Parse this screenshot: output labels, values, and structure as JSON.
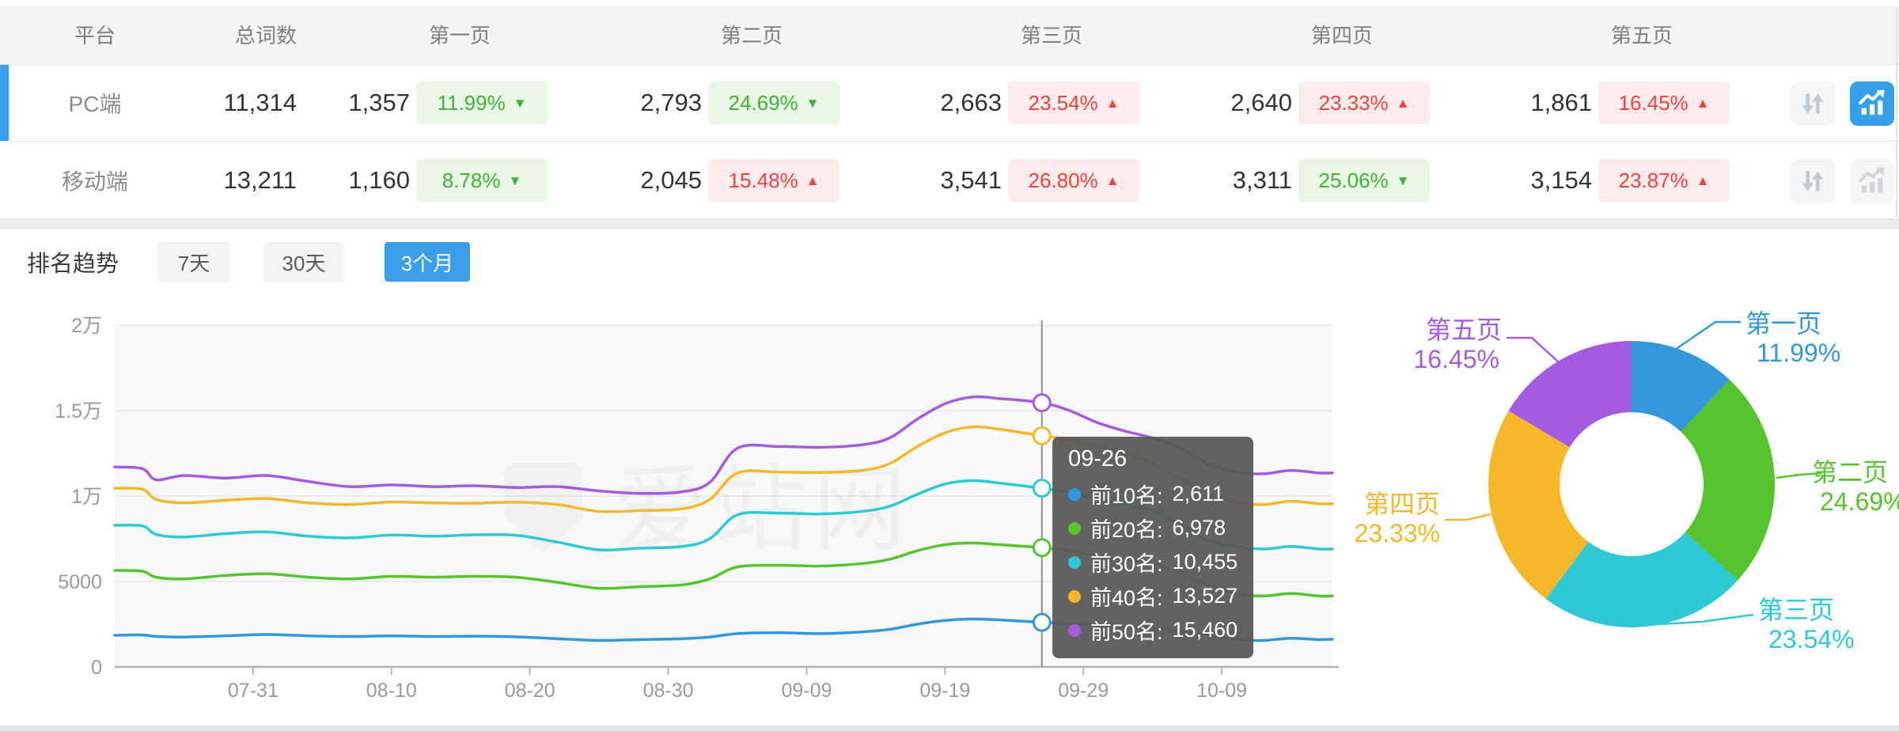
{
  "accent_color": "#3A9FE8",
  "table": {
    "columns": [
      "平台",
      "总词数",
      "第一页",
      "第二页",
      "第三页",
      "第四页",
      "第五页"
    ],
    "rows": [
      {
        "platform": "PC端",
        "total": "11,314",
        "selected": true,
        "chart_active": true,
        "pages": [
          {
            "count": "1,357",
            "pct": "11.99%",
            "dir": "down"
          },
          {
            "count": "2,793",
            "pct": "24.69%",
            "dir": "down"
          },
          {
            "count": "2,663",
            "pct": "23.54%",
            "dir": "up"
          },
          {
            "count": "2,640",
            "pct": "23.33%",
            "dir": "up"
          },
          {
            "count": "1,861",
            "pct": "16.45%",
            "dir": "up"
          }
        ]
      },
      {
        "platform": "移动端",
        "total": "13,211",
        "selected": false,
        "chart_active": false,
        "pages": [
          {
            "count": "1,160",
            "pct": "8.78%",
            "dir": "down"
          },
          {
            "count": "2,045",
            "pct": "15.48%",
            "dir": "up"
          },
          {
            "count": "3,541",
            "pct": "26.80%",
            "dir": "up"
          },
          {
            "count": "3,311",
            "pct": "25.06%",
            "dir": "down"
          },
          {
            "count": "3,154",
            "pct": "23.87%",
            "dir": "up"
          }
        ]
      }
    ],
    "icons": {
      "sort": "up-down-arrows",
      "trend_chart": "line-chart-with-bars"
    }
  },
  "trend": {
    "title": "排名趋势",
    "tabs": [
      {
        "label": "7天",
        "active": false
      },
      {
        "label": "30天",
        "active": false
      },
      {
        "label": "3个月",
        "active": true
      }
    ]
  },
  "watermark": "爱站网",
  "tooltip": {
    "date": "09-26",
    "rows": [
      {
        "label": "前10名:",
        "value": "2,611",
        "color": "#3398DB"
      },
      {
        "label": "前20名:",
        "value": "6,978",
        "color": "#55C42E"
      },
      {
        "label": "前30名:",
        "value": "10,455",
        "color": "#2FC9D6"
      },
      {
        "label": "前40名:",
        "value": "13,527",
        "color": "#F5B82B"
      },
      {
        "label": "前50名:",
        "value": "15,460",
        "color": "#A55BDF"
      }
    ]
  },
  "chart_data": [
    {
      "type": "line",
      "title": "排名趋势(3个月)",
      "x_start_date": "07-21",
      "x_end_date": "10-17",
      "total_days": 88,
      "x_tick_days": [
        10,
        20,
        30,
        40,
        50,
        60,
        70,
        80
      ],
      "x_tick_labels": [
        "07-31",
        "08-10",
        "08-20",
        "08-30",
        "09-09",
        "09-19",
        "09-29",
        "10-09"
      ],
      "y_tick_labels": [
        "0",
        "5000",
        "1万",
        "1.5万",
        "2万"
      ],
      "ylim": [
        0,
        20000
      ],
      "grid": true,
      "highlight_day": 67,
      "highlight_date": "09-26",
      "series": [
        {
          "name": "前10名",
          "color": "#3398DB",
          "highlight_value": 2611,
          "points": [
            [
              0,
              1850
            ],
            [
              2,
              1870
            ],
            [
              3,
              1780
            ],
            [
              5,
              1750
            ],
            [
              8,
              1820
            ],
            [
              11,
              1900
            ],
            [
              14,
              1820
            ],
            [
              17,
              1780
            ],
            [
              20,
              1820
            ],
            [
              23,
              1780
            ],
            [
              26,
              1800
            ],
            [
              29,
              1760
            ],
            [
              32,
              1650
            ],
            [
              35,
              1550
            ],
            [
              38,
              1600
            ],
            [
              41,
              1650
            ],
            [
              43,
              1750
            ],
            [
              45,
              1950
            ],
            [
              48,
              2000
            ],
            [
              51,
              1950
            ],
            [
              54,
              2050
            ],
            [
              56,
              2200
            ],
            [
              58,
              2500
            ],
            [
              60,
              2720
            ],
            [
              62,
              2800
            ],
            [
              64,
              2750
            ],
            [
              67,
              2611
            ],
            [
              69,
              2550
            ],
            [
              71,
              2450
            ],
            [
              73,
              2350
            ],
            [
              75,
              2250
            ],
            [
              77,
              2050
            ],
            [
              79,
              1850
            ],
            [
              81,
              1600
            ],
            [
              83,
              1550
            ],
            [
              85,
              1680
            ],
            [
              87,
              1600
            ],
            [
              88,
              1620
            ]
          ]
        },
        {
          "name": "前20名",
          "color": "#55C42E",
          "highlight_value": 6978,
          "points": [
            [
              0,
              5650
            ],
            [
              2,
              5600
            ],
            [
              3,
              5250
            ],
            [
              5,
              5150
            ],
            [
              8,
              5350
            ],
            [
              11,
              5450
            ],
            [
              14,
              5250
            ],
            [
              17,
              5150
            ],
            [
              20,
              5300
            ],
            [
              23,
              5250
            ],
            [
              26,
              5300
            ],
            [
              29,
              5250
            ],
            [
              32,
              4950
            ],
            [
              35,
              4600
            ],
            [
              38,
              4700
            ],
            [
              41,
              4800
            ],
            [
              43,
              5150
            ],
            [
              45,
              5850
            ],
            [
              48,
              5950
            ],
            [
              51,
              5900
            ],
            [
              54,
              6050
            ],
            [
              56,
              6300
            ],
            [
              58,
              6800
            ],
            [
              60,
              7150
            ],
            [
              62,
              7250
            ],
            [
              64,
              7150
            ],
            [
              67,
              6978
            ],
            [
              69,
              6800
            ],
            [
              71,
              6500
            ],
            [
              73,
              6300
            ],
            [
              75,
              6050
            ],
            [
              77,
              5500
            ],
            [
              79,
              4800
            ],
            [
              81,
              4300
            ],
            [
              83,
              4150
            ],
            [
              85,
              4300
            ],
            [
              87,
              4150
            ],
            [
              88,
              4150
            ]
          ]
        },
        {
          "name": "前30名",
          "color": "#2FC9D6",
          "highlight_value": 10455,
          "points": [
            [
              0,
              8290
            ],
            [
              2,
              8250
            ],
            [
              3,
              7750
            ],
            [
              5,
              7600
            ],
            [
              8,
              7800
            ],
            [
              11,
              7900
            ],
            [
              14,
              7650
            ],
            [
              17,
              7550
            ],
            [
              20,
              7720
            ],
            [
              23,
              7650
            ],
            [
              26,
              7730
            ],
            [
              29,
              7700
            ],
            [
              32,
              7300
            ],
            [
              35,
              6850
            ],
            [
              38,
              6950
            ],
            [
              41,
              7050
            ],
            [
              43,
              7500
            ],
            [
              45,
              8900
            ],
            [
              48,
              9000
            ],
            [
              51,
              8950
            ],
            [
              54,
              9100
            ],
            [
              56,
              9400
            ],
            [
              58,
              10100
            ],
            [
              60,
              10700
            ],
            [
              62,
              10900
            ],
            [
              64,
              10750
            ],
            [
              67,
              10455
            ],
            [
              69,
              10200
            ],
            [
              71,
              9800
            ],
            [
              73,
              9500
            ],
            [
              75,
              9150
            ],
            [
              77,
              8300
            ],
            [
              79,
              7400
            ],
            [
              81,
              7050
            ],
            [
              83,
              6900
            ],
            [
              85,
              7050
            ],
            [
              87,
              6900
            ],
            [
              88,
              6900
            ]
          ]
        },
        {
          "name": "前40名",
          "color": "#F5B82B",
          "highlight_value": 13527,
          "points": [
            [
              0,
              10450
            ],
            [
              2,
              10400
            ],
            [
              3,
              9800
            ],
            [
              5,
              9600
            ],
            [
              8,
              9750
            ],
            [
              11,
              9850
            ],
            [
              14,
              9600
            ],
            [
              17,
              9500
            ],
            [
              20,
              9650
            ],
            [
              23,
              9600
            ],
            [
              26,
              9580
            ],
            [
              29,
              9640
            ],
            [
              32,
              9500
            ],
            [
              35,
              9100
            ],
            [
              38,
              9150
            ],
            [
              41,
              9250
            ],
            [
              43,
              9800
            ],
            [
              45,
              11350
            ],
            [
              48,
              11400
            ],
            [
              51,
              11380
            ],
            [
              54,
              11500
            ],
            [
              56,
              11900
            ],
            [
              58,
              12900
            ],
            [
              60,
              13700
            ],
            [
              62,
              14050
            ],
            [
              64,
              13900
            ],
            [
              67,
              13527
            ],
            [
              69,
              13300
            ],
            [
              71,
              12900
            ],
            [
              73,
              12500
            ],
            [
              75,
              11900
            ],
            [
              77,
              11000
            ],
            [
              79,
              10200
            ],
            [
              81,
              9650
            ],
            [
              83,
              9500
            ],
            [
              85,
              9700
            ],
            [
              87,
              9550
            ],
            [
              88,
              9550
            ]
          ]
        },
        {
          "name": "前50名",
          "color": "#A55BDF",
          "highlight_value": 15460,
          "points": [
            [
              0,
              11700
            ],
            [
              2,
              11600
            ],
            [
              3,
              10950
            ],
            [
              5,
              11200
            ],
            [
              8,
              11050
            ],
            [
              11,
              11200
            ],
            [
              14,
              10850
            ],
            [
              17,
              10550
            ],
            [
              20,
              10650
            ],
            [
              23,
              10550
            ],
            [
              26,
              10600
            ],
            [
              29,
              10500
            ],
            [
              32,
              10550
            ],
            [
              35,
              10300
            ],
            [
              38,
              10150
            ],
            [
              41,
              10250
            ],
            [
              43,
              10800
            ],
            [
              45,
              12800
            ],
            [
              48,
              12900
            ],
            [
              51,
              12850
            ],
            [
              54,
              13000
            ],
            [
              56,
              13400
            ],
            [
              58,
              14500
            ],
            [
              60,
              15400
            ],
            [
              62,
              15800
            ],
            [
              64,
              15700
            ],
            [
              67,
              15460
            ],
            [
              69,
              15000
            ],
            [
              71,
              14300
            ],
            [
              73,
              13800
            ],
            [
              75,
              13400
            ],
            [
              77,
              12800
            ],
            [
              79,
              11900
            ],
            [
              81,
              11400
            ],
            [
              83,
              11300
            ],
            [
              85,
              11500
            ],
            [
              87,
              11350
            ],
            [
              88,
              11350
            ]
          ]
        }
      ]
    },
    {
      "type": "donut",
      "slices": [
        {
          "label": "第一页",
          "value_pct": 11.99,
          "pct_label": "11.99%",
          "color": "#3398DB"
        },
        {
          "label": "第二页",
          "value_pct": 24.69,
          "pct_label": "24.69%",
          "color": "#55C42E"
        },
        {
          "label": "第三页",
          "value_pct": 23.54,
          "pct_label": "23.54%",
          "color": "#2FC9D6"
        },
        {
          "label": "第四页",
          "value_pct": 23.33,
          "pct_label": "23.33%",
          "color": "#F5B82B"
        },
        {
          "label": "第五页",
          "value_pct": 16.45,
          "pct_label": "16.45%",
          "color": "#A55BDF"
        }
      ]
    }
  ]
}
